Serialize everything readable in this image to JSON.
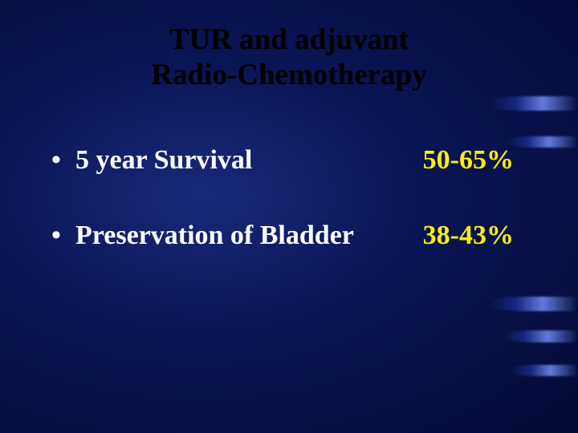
{
  "slide": {
    "title_line1": "TUR and adjuvant",
    "title_line2": "Radio-Chemotherapy",
    "title_color": "#000000",
    "title_fontsize": 37,
    "bullets": [
      {
        "label": "5 year Survival",
        "value": "50-65%"
      },
      {
        "label": "Preservation of Bladder",
        "value": "38-43%"
      }
    ],
    "label_color": "#ffffff",
    "value_color": "#fff000",
    "bullet_fontsize": 34,
    "background": {
      "gradient_center": "#1a2a7a",
      "gradient_mid": "#0a1555",
      "gradient_edge": "#050a35"
    },
    "font_family": "Comic Sans MS"
  }
}
